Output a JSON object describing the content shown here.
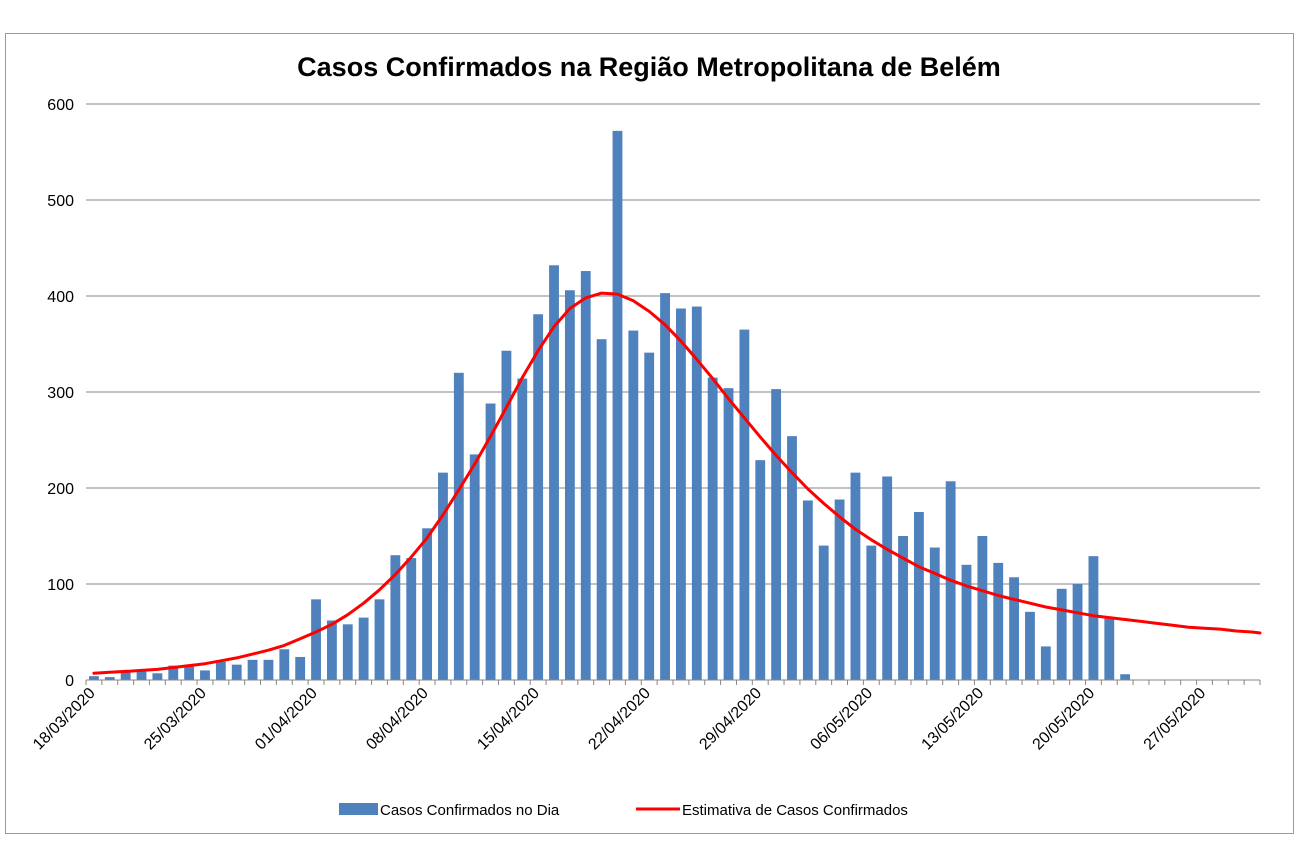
{
  "chart_data": {
    "type": "bar",
    "title": "Casos Confirmados na Região Metropolitana de Belém",
    "xlabel": "",
    "ylabel": "",
    "ylim": [
      0,
      600
    ],
    "yticks": [
      0,
      100,
      200,
      300,
      400,
      500,
      600
    ],
    "grid": true,
    "legend_placement": "bottom",
    "start_date": "18/03/2020",
    "x_tick_labels": [
      "18/03/2020",
      "25/03/2020",
      "01/04/2020",
      "08/04/2020",
      "15/04/2020",
      "22/04/2020",
      "29/04/2020",
      "06/05/2020",
      "13/05/2020",
      "20/05/2020",
      "27/05/2020"
    ],
    "series": [
      {
        "name": "Casos Confirmados no Dia",
        "kind": "bar",
        "color": "#4f81bd",
        "values": [
          4,
          3,
          8,
          10,
          7,
          15,
          16,
          10,
          19,
          16,
          21,
          21,
          32,
          24,
          84,
          62,
          58,
          65,
          84,
          130,
          127,
          158,
          216,
          320,
          235,
          288,
          343,
          314,
          381,
          432,
          406,
          426,
          355,
          572,
          364,
          341,
          403,
          387,
          389,
          315,
          304,
          365,
          229,
          303,
          254,
          187,
          140,
          188,
          216,
          140,
          212,
          150,
          175,
          138,
          207,
          120,
          150,
          122,
          107,
          71,
          35,
          95,
          100,
          129,
          64,
          6
        ]
      },
      {
        "name": "Estimativa de Casos Confirmados",
        "kind": "line",
        "color": "#ff0000",
        "values": [
          7,
          8,
          9,
          10,
          11,
          13,
          15,
          17,
          20,
          23,
          27,
          31,
          36,
          43,
          50,
          58,
          68,
          80,
          94,
          110,
          128,
          148,
          172,
          198,
          225,
          254,
          284,
          315,
          343,
          368,
          387,
          398,
          403,
          402,
          395,
          384,
          370,
          353,
          334,
          314,
          293,
          273,
          253,
          234,
          216,
          199,
          184,
          170,
          157,
          146,
          136,
          127,
          118,
          111,
          104,
          98,
          93,
          88,
          84,
          80,
          76,
          73,
          70,
          67,
          65,
          63,
          61,
          59,
          57,
          55,
          54,
          53,
          51,
          50,
          49
        ]
      }
    ]
  }
}
